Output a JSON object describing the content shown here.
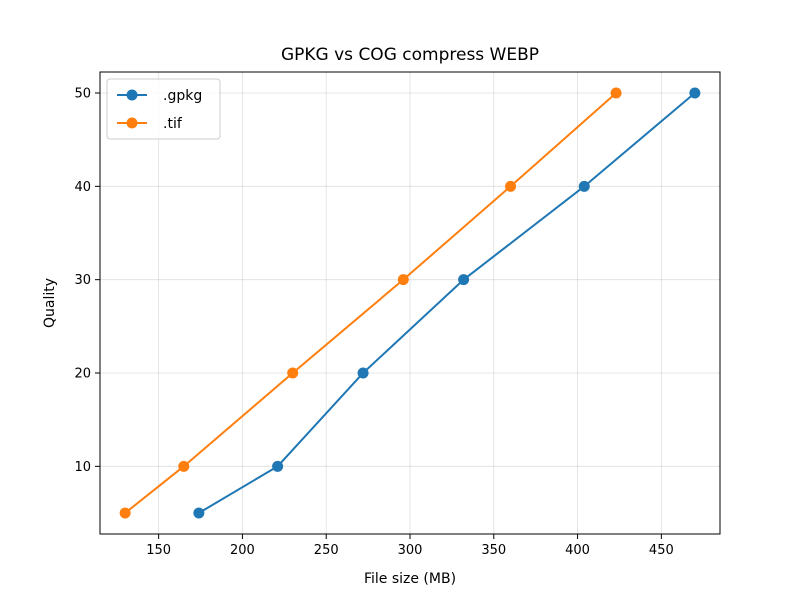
{
  "chart_data": {
    "type": "line",
    "title": "GPKG vs COG compress WEBP",
    "xlabel": "File size (MB)",
    "ylabel": "Quality",
    "xlim": [
      115,
      485
    ],
    "ylim": [
      2.75,
      52.25
    ],
    "xticks": [
      150,
      200,
      250,
      300,
      350,
      400,
      450
    ],
    "yticks": [
      10,
      20,
      30,
      40,
      50
    ],
    "grid": true,
    "legend_position": "top-left",
    "series": [
      {
        "name": ".gpkg",
        "color": "#1f77b4",
        "x": [
          174,
          221,
          272,
          332,
          404,
          470
        ],
        "y": [
          5,
          10,
          20,
          30,
          40,
          50
        ]
      },
      {
        "name": ".tif",
        "color": "#ff7f0e",
        "x": [
          130,
          165,
          230,
          296,
          360,
          423
        ],
        "y": [
          5,
          10,
          20,
          30,
          40,
          50
        ]
      }
    ]
  }
}
